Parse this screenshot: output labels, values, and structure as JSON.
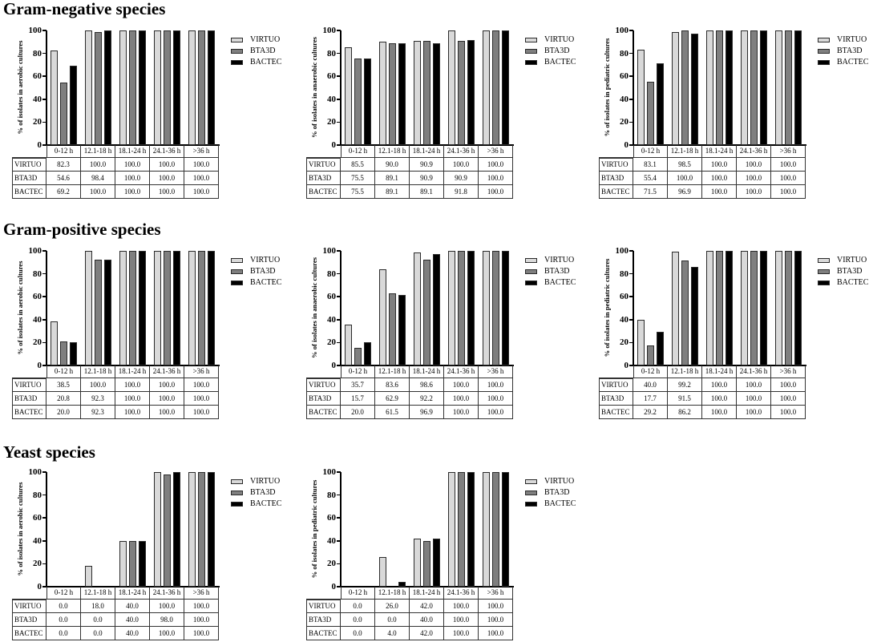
{
  "legend": {
    "items": [
      {
        "label": "VIRTUO",
        "color": "#d9d9d9"
      },
      {
        "label": "BTA3D",
        "color": "#7f7f7f"
      },
      {
        "label": "BACTEC",
        "color": "#000000"
      }
    ]
  },
  "y_axis": {
    "ticks": [
      "0",
      "20",
      "40",
      "60",
      "80",
      "100"
    ]
  },
  "sections": [
    {
      "title": "Gram-negative species",
      "panels": [
        {
          "chart": 0,
          "ylabel": "% of isolates in aerobic cultures",
          "table": {
            "rows": [
              {
                "label": "VIRTUO",
                "cells": [
                  "82.3",
                  "100.0",
                  "100.0",
                  "100.0",
                  "100.0"
                ]
              },
              {
                "label": "BTA3D",
                "cells": [
                  "54.6",
                  "98.4",
                  "100.0",
                  "100.0",
                  "100.0"
                ]
              },
              {
                "label": "BACTEC",
                "cells": [
                  "69.2",
                  "100.0",
                  "100.0",
                  "100.0",
                  "100.0"
                ]
              }
            ]
          }
        },
        {
          "chart": 1,
          "ylabel": "% of isolates in anaerobic cultures",
          "table": {
            "rows": [
              {
                "label": "VIRTUO",
                "cells": [
                  "85.5",
                  "90.0",
                  "90.9",
                  "100.0",
                  "100.0"
                ]
              },
              {
                "label": "BTA3D",
                "cells": [
                  "75.5",
                  "89.1",
                  "90.9",
                  "90.9",
                  "100.0"
                ]
              },
              {
                "label": "BACTEC",
                "cells": [
                  "75.5",
                  "89.1",
                  "89.1",
                  "91.8",
                  "100.0"
                ]
              }
            ]
          }
        },
        {
          "chart": 2,
          "ylabel": "% of isolates in pediatric cultures",
          "table": {
            "rows": [
              {
                "label": "VIRTUO",
                "cells": [
                  "83.1",
                  "98.5",
                  "100.0",
                  "100.0",
                  "100.0"
                ]
              },
              {
                "label": "BTA3D",
                "cells": [
                  "55.4",
                  "100.0",
                  "100.0",
                  "100.0",
                  "100.0"
                ]
              },
              {
                "label": "BACTEC",
                "cells": [
                  "71.5",
                  "96.9",
                  "100.0",
                  "100.0",
                  "100.0"
                ]
              }
            ]
          }
        }
      ]
    },
    {
      "title": "Gram-positive species",
      "panels": [
        {
          "chart": 3,
          "ylabel": "% of isolates in aerobic cultures",
          "table": {
            "rows": [
              {
                "label": "VIRTUO",
                "cells": [
                  "38.5",
                  "100.0",
                  "100.0",
                  "100.0",
                  "100.0"
                ]
              },
              {
                "label": "BTA3D",
                "cells": [
                  "20.8",
                  "92.3",
                  "100.0",
                  "100.0",
                  "100.0"
                ]
              },
              {
                "label": "BACTEC",
                "cells": [
                  "20.0",
                  "92.3",
                  "100.0",
                  "100.0",
                  "100.0"
                ]
              }
            ]
          }
        },
        {
          "chart": 4,
          "ylabel": "% of isolates in anaerobic cultures",
          "table": {
            "rows": [
              {
                "label": "VIRTUO",
                "cells": [
                  "35.7",
                  "83.6",
                  "98.6",
                  "100.0",
                  "100.0"
                ]
              },
              {
                "label": "BTA3D",
                "cells": [
                  "15.7",
                  "62.9",
                  "92.2",
                  "100.0",
                  "100.0"
                ]
              },
              {
                "label": "BACTEC",
                "cells": [
                  "20.0",
                  "61.5",
                  "96.9",
                  "100.0",
                  "100.0"
                ]
              }
            ]
          }
        },
        {
          "chart": 5,
          "ylabel": "% of isolates in pediatric cultures",
          "table": {
            "rows": [
              {
                "label": "VIRTUO",
                "cells": [
                  "40.0",
                  "99.2",
                  "100.0",
                  "100.0",
                  "100.0"
                ]
              },
              {
                "label": "BTA3D",
                "cells": [
                  "17.7",
                  "91.5",
                  "100.0",
                  "100.0",
                  "100.0"
                ]
              },
              {
                "label": "BACTEC",
                "cells": [
                  "29.2",
                  "86.2",
                  "100.0",
                  "100.0",
                  "100.0"
                ]
              }
            ]
          }
        }
      ]
    },
    {
      "title": "Yeast species",
      "panels": [
        {
          "chart": 6,
          "ylabel": "% of isolates in aerobic cultures",
          "table": {
            "rows": [
              {
                "label": "VIRTUO",
                "cells": [
                  "0.0",
                  "18.0",
                  "40.0",
                  "100.0",
                  "100.0"
                ]
              },
              {
                "label": "BTA3D",
                "cells": [
                  "0.0",
                  "0.0",
                  "40.0",
                  "98.0",
                  "100.0"
                ]
              },
              {
                "label": "BACTEC",
                "cells": [
                  "0.0",
                  "0.0",
                  "40.0",
                  "100.0",
                  "100.0"
                ]
              }
            ]
          }
        },
        {
          "chart": 7,
          "ylabel": "% of isolates in pediatric cultures",
          "table": {
            "rows": [
              {
                "label": "VIRTUO",
                "cells": [
                  "0.0",
                  "26.0",
                  "42.0",
                  "100.0",
                  "100.0"
                ]
              },
              {
                "label": "BTA3D",
                "cells": [
                  "0.0",
                  "0.0",
                  "40.0",
                  "100.0",
                  "100.0"
                ]
              },
              {
                "label": "BACTEC",
                "cells": [
                  "0.0",
                  "4.0",
                  "42.0",
                  "100.0",
                  "100.0"
                ]
              }
            ]
          }
        }
      ]
    }
  ],
  "chart_data": [
    {
      "type": "bar",
      "title": "Gram-negative species",
      "ylabel": "% of isolates in aerobic cultures",
      "xlabel": "",
      "categories": [
        "0-12 h",
        "12.1-18 h",
        "18.1-24 h",
        "24.1-36 h",
        ">36 h"
      ],
      "ylim": [
        0,
        100
      ],
      "grid": false,
      "legend_position": "right",
      "series": [
        {
          "name": "VIRTUO",
          "values": [
            82.3,
            100.0,
            100.0,
            100.0,
            100.0
          ]
        },
        {
          "name": "BTA3D",
          "values": [
            54.6,
            98.4,
            100.0,
            100.0,
            100.0
          ]
        },
        {
          "name": "BACTEC",
          "values": [
            69.2,
            100.0,
            100.0,
            100.0,
            100.0
          ]
        }
      ]
    },
    {
      "type": "bar",
      "title": "Gram-negative species",
      "ylabel": "% of isolates in anaerobic cultures",
      "xlabel": "",
      "categories": [
        "0-12 h",
        "12.1-18 h",
        "18.1-24 h",
        "24.1-36 h",
        ">36 h"
      ],
      "ylim": [
        0,
        100
      ],
      "grid": false,
      "legend_position": "right",
      "series": [
        {
          "name": "VIRTUO",
          "values": [
            85.5,
            90.0,
            90.9,
            100.0,
            100.0
          ]
        },
        {
          "name": "BTA3D",
          "values": [
            75.5,
            89.1,
            90.9,
            90.9,
            100.0
          ]
        },
        {
          "name": "BACTEC",
          "values": [
            75.5,
            89.1,
            89.1,
            91.8,
            100.0
          ]
        }
      ]
    },
    {
      "type": "bar",
      "title": "Gram-negative species",
      "ylabel": "% of isolates in pediatric cultures",
      "xlabel": "",
      "categories": [
        "0-12 h",
        "12.1-18 h",
        "18.1-24 h",
        "24.1-36 h",
        ">36 h"
      ],
      "ylim": [
        0,
        100
      ],
      "grid": false,
      "legend_position": "right",
      "series": [
        {
          "name": "VIRTUO",
          "values": [
            83.1,
            98.5,
            100.0,
            100.0,
            100.0
          ]
        },
        {
          "name": "BTA3D",
          "values": [
            55.4,
            100.0,
            100.0,
            100.0,
            100.0
          ]
        },
        {
          "name": "BACTEC",
          "values": [
            71.5,
            96.9,
            100.0,
            100.0,
            100.0
          ]
        }
      ]
    },
    {
      "type": "bar",
      "title": "Gram-positive species",
      "ylabel": "% of isolates in aerobic cultures",
      "xlabel": "",
      "categories": [
        "0-12 h",
        "12.1-18 h",
        "18.1-24 h",
        "24.1-36 h",
        ">36 h"
      ],
      "ylim": [
        0,
        100
      ],
      "grid": false,
      "legend_position": "right",
      "series": [
        {
          "name": "VIRTUO",
          "values": [
            38.5,
            100.0,
            100.0,
            100.0,
            100.0
          ]
        },
        {
          "name": "BTA3D",
          "values": [
            20.8,
            92.3,
            100.0,
            100.0,
            100.0
          ]
        },
        {
          "name": "BACTEC",
          "values": [
            20.0,
            92.3,
            100.0,
            100.0,
            100.0
          ]
        }
      ]
    },
    {
      "type": "bar",
      "title": "Gram-positive species",
      "ylabel": "% of isolates in anaerobic cultures",
      "xlabel": "",
      "categories": [
        "0-12 h",
        "12.1-18 h",
        "18.1-24 h",
        "24.1-36 h",
        ">36 h"
      ],
      "ylim": [
        0,
        100
      ],
      "grid": false,
      "legend_position": "right",
      "series": [
        {
          "name": "VIRTUO",
          "values": [
            35.7,
            83.6,
            98.6,
            100.0,
            100.0
          ]
        },
        {
          "name": "BTA3D",
          "values": [
            15.7,
            62.9,
            92.2,
            100.0,
            100.0
          ]
        },
        {
          "name": "BACTEC",
          "values": [
            20.0,
            61.5,
            96.9,
            100.0,
            100.0
          ]
        }
      ]
    },
    {
      "type": "bar",
      "title": "Gram-positive species",
      "ylabel": "% of isolates in pediatric cultures",
      "xlabel": "",
      "categories": [
        "0-12 h",
        "12.1-18 h",
        "18.1-24 h",
        "24.1-36 h",
        ">36 h"
      ],
      "ylim": [
        0,
        100
      ],
      "grid": false,
      "legend_position": "right",
      "series": [
        {
          "name": "VIRTUO",
          "values": [
            40.0,
            99.2,
            100.0,
            100.0,
            100.0
          ]
        },
        {
          "name": "BTA3D",
          "values": [
            17.7,
            91.5,
            100.0,
            100.0,
            100.0
          ]
        },
        {
          "name": "BACTEC",
          "values": [
            29.2,
            86.2,
            100.0,
            100.0,
            100.0
          ]
        }
      ]
    },
    {
      "type": "bar",
      "title": "Yeast species",
      "ylabel": "% of isolates in aerobic cultures",
      "xlabel": "",
      "categories": [
        "0-12 h",
        "12.1-18 h",
        "18.1-24 h",
        "24.1-36 h",
        ">36 h"
      ],
      "ylim": [
        0,
        100
      ],
      "grid": false,
      "legend_position": "right",
      "series": [
        {
          "name": "VIRTUO",
          "values": [
            0.0,
            18.0,
            40.0,
            100.0,
            100.0
          ]
        },
        {
          "name": "BTA3D",
          "values": [
            0.0,
            0.0,
            40.0,
            98.0,
            100.0
          ]
        },
        {
          "name": "BACTEC",
          "values": [
            0.0,
            0.0,
            40.0,
            100.0,
            100.0
          ]
        }
      ]
    },
    {
      "type": "bar",
      "title": "Yeast species",
      "ylabel": "% of isolates in pediatric cultures",
      "xlabel": "",
      "categories": [
        "0-12 h",
        "12.1-18 h",
        "18.1-24 h",
        "24.1-36 h",
        ">36 h"
      ],
      "ylim": [
        0,
        100
      ],
      "grid": false,
      "legend_position": "right",
      "series": [
        {
          "name": "VIRTUO",
          "values": [
            0.0,
            26.0,
            42.0,
            100.0,
            100.0
          ]
        },
        {
          "name": "BTA3D",
          "values": [
            0.0,
            0.0,
            40.0,
            100.0,
            100.0
          ]
        },
        {
          "name": "BACTEC",
          "values": [
            0.0,
            4.0,
            42.0,
            100.0,
            100.0
          ]
        }
      ]
    }
  ]
}
